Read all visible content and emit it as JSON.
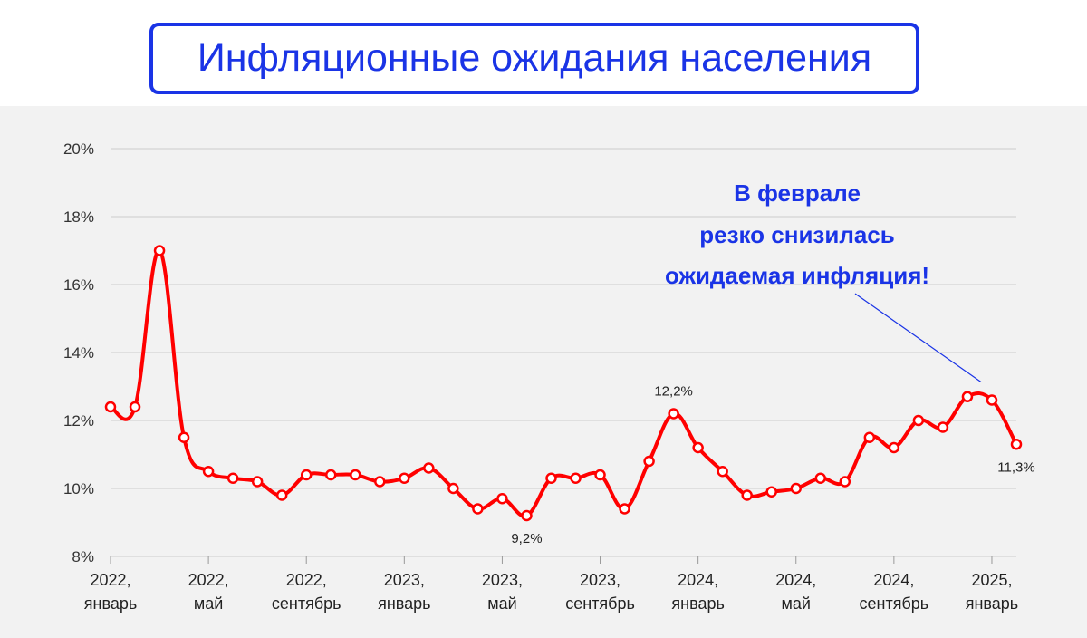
{
  "page_title": "Инфляционные ожидания населения",
  "colors": {
    "line": "#ff0000",
    "title": "#1a34e6",
    "annotation": "#1a34e6",
    "panel": "#f2f2f2",
    "grid": "#cccccc"
  },
  "chart_data": {
    "type": "line",
    "title": "",
    "xlabel": "",
    "ylabel": "",
    "ylim": [
      8,
      20
    ],
    "grid": true,
    "y_ticks": [
      "8%",
      "10%",
      "12%",
      "14%",
      "16%",
      "18%",
      "20%"
    ],
    "x_ticks": [
      {
        "index": 0,
        "line1": "2022,",
        "line2": "январь"
      },
      {
        "index": 4,
        "line1": "2022,",
        "line2": "май"
      },
      {
        "index": 8,
        "line1": "2022,",
        "line2": "сентябрь"
      },
      {
        "index": 12,
        "line1": "2023,",
        "line2": "январь"
      },
      {
        "index": 16,
        "line1": "2023,",
        "line2": "май"
      },
      {
        "index": 20,
        "line1": "2023,",
        "line2": "сентябрь"
      },
      {
        "index": 24,
        "line1": "2024,",
        "line2": "январь"
      },
      {
        "index": 28,
        "line1": "2024,",
        "line2": "май"
      },
      {
        "index": 32,
        "line1": "2024,",
        "line2": "сентябрь"
      },
      {
        "index": 36,
        "line1": "2025,",
        "line2": "январь"
      }
    ],
    "series": [
      {
        "values": [
          12.4,
          12.4,
          17.0,
          11.5,
          10.5,
          10.3,
          10.2,
          9.8,
          10.4,
          10.4,
          10.4,
          10.2,
          10.3,
          10.6,
          10.0,
          9.4,
          9.7,
          9.2,
          10.3,
          10.3,
          10.4,
          9.4,
          10.8,
          12.2,
          11.2,
          10.5,
          9.8,
          9.9,
          10.0,
          10.3,
          10.2,
          11.5,
          11.2,
          12.0,
          11.8,
          12.7,
          12.6,
          11.3
        ]
      }
    ],
    "data_labels": [
      {
        "index": 17,
        "text": "9,2%",
        "position": "below"
      },
      {
        "index": 23,
        "text": "12,2%",
        "position": "above"
      },
      {
        "index": 37,
        "text": "11,3%",
        "position": "below"
      }
    ],
    "annotation": {
      "lines": [
        "В феврале",
        "резко снизилась",
        "ожидаемая инфляция!"
      ],
      "target_index": 36
    }
  }
}
